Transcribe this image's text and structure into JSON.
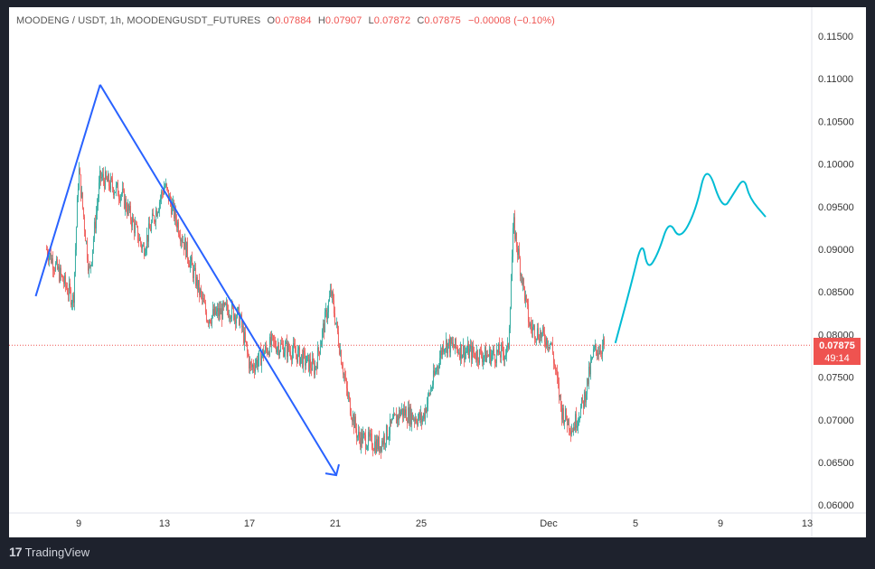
{
  "legend": {
    "symbol": "MOODENG / USDT, 1h, MOODENGUSDT_FUTURES",
    "o_label": "O",
    "o_value": "0.07884",
    "h_label": "H",
    "h_value": "0.07907",
    "l_label": "L",
    "l_value": "0.07872",
    "c_label": "C",
    "c_value": "0.07875",
    "change": "−0.00008 (−0.10%)"
  },
  "price_tag": {
    "price": "0.07875",
    "countdown": "49:14"
  },
  "brand": {
    "logo": "17",
    "name": "TradingView"
  },
  "colors": {
    "up": "#26a69a",
    "down": "#ef5350",
    "drawing": "#2962ff",
    "projection": "#00bcd4",
    "background": "#1e222d"
  },
  "chart_data": {
    "type": "candlestick",
    "y_axis": {
      "ticks": [
        "0.11500",
        "0.11000",
        "0.10500",
        "0.10000",
        "0.09500",
        "0.09000",
        "0.08500",
        "0.08000",
        "0.07500",
        "0.07000",
        "0.06500",
        "0.06000"
      ],
      "range": [
        0.0595,
        0.1175
      ]
    },
    "x_axis": {
      "ticks": [
        "9",
        "13",
        "17",
        "21",
        "25",
        "Dec",
        "5",
        "9",
        "13"
      ]
    },
    "last_price": 0.07875,
    "price_path": [
      [
        "Nov 7 12:00",
        0.09
      ],
      [
        "Nov 8 18:00",
        0.084
      ],
      [
        "Nov 9 00:00",
        0.0995
      ],
      [
        "Nov 9 12:00",
        0.087
      ],
      [
        "Nov 10 00:00",
        0.0985
      ],
      [
        "Nov 11 00:00",
        0.0965
      ],
      [
        "Nov 12 00:00",
        0.09
      ],
      [
        "Nov 13 00:00",
        0.0975
      ],
      [
        "Nov 14 00:00",
        0.09
      ],
      [
        "Nov 15 00:00",
        0.082
      ],
      [
        "Nov 16 00:00",
        0.083
      ],
      [
        "Nov 16 12:00",
        0.082
      ],
      [
        "Nov 17 00:00",
        0.076
      ],
      [
        "Nov 18 00:00",
        0.079
      ],
      [
        "Nov 19 00:00",
        0.078
      ],
      [
        "Nov 20 00:00",
        0.076
      ],
      [
        "Nov 20 18:00",
        0.085
      ],
      [
        "Nov 21 12:00",
        0.073
      ],
      [
        "Nov 22 00:00",
        0.068
      ],
      [
        "Nov 23 00:00",
        0.067
      ],
      [
        "Nov 24 00:00",
        0.071
      ],
      [
        "Nov 25 00:00",
        0.07
      ],
      [
        "Nov 26 00:00",
        0.079
      ],
      [
        "Nov 27 00:00",
        0.078
      ],
      [
        "Nov 28 00:00",
        0.0775
      ],
      [
        "Nov 29 00:00",
        0.078
      ],
      [
        "Nov 29 06:00",
        0.093
      ],
      [
        "Nov 30 00:00",
        0.081
      ],
      [
        "Dec 1 00:00",
        0.079
      ],
      [
        "Dec 1 12:00",
        0.071
      ],
      [
        "Dec 2 00:00",
        0.069
      ],
      [
        "Dec 2 12:00",
        0.072
      ],
      [
        "Dec 3 00:00",
        0.078
      ],
      [
        "Dec 3 12:00",
        0.07875
      ]
    ],
    "drawings": {
      "lines": [
        {
          "from": [
            "Nov 7",
            0.0845
          ],
          "to": [
            "Nov 10",
            0.1093
          ]
        },
        {
          "from": [
            "Nov 10",
            0.1093
          ],
          "to": [
            "Nov 21",
            0.0635
          ]
        }
      ],
      "projection": [
        [
          "Dec 4",
          0.079
        ],
        [
          "Dec 4 18:00",
          0.086
        ],
        [
          "Dec 5 06:00",
          0.0912
        ],
        [
          "Dec 5 12:00",
          0.0875
        ],
        [
          "Dec 6 00:00",
          0.0895
        ],
        [
          "Dec 6 12:00",
          0.0935
        ],
        [
          "Dec 7 00:00",
          0.091
        ],
        [
          "Dec 7 18:00",
          0.0945
        ],
        [
          "Dec 8 06:00",
          0.1003
        ],
        [
          "Dec 9 00:00",
          0.0945
        ],
        [
          "Dec 9 12:00",
          0.0965
        ],
        [
          "Dec 10 00:00",
          0.0985
        ],
        [
          "Dec 10 06:00",
          0.096
        ],
        [
          "Dec 11 00:00",
          0.0938
        ]
      ]
    }
  }
}
